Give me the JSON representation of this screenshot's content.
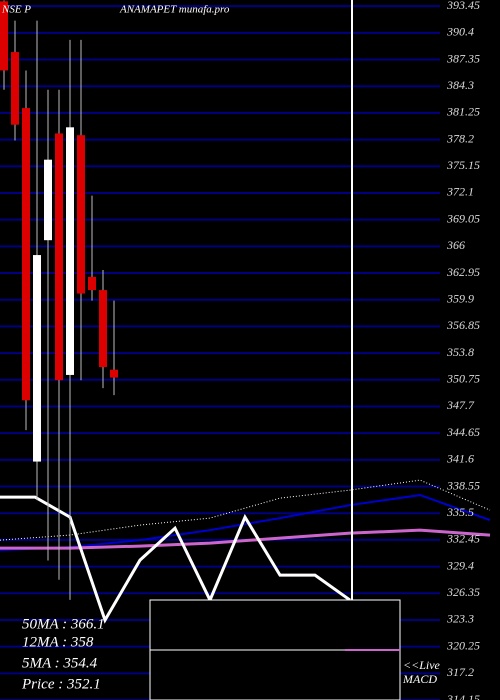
{
  "chart_data": {
    "type": "candlestick",
    "source": "NSE P",
    "title": "ANAMAPET munafa.pro",
    "categories": [
      null,
      null,
      null,
      null,
      null,
      null,
      null,
      null,
      null,
      null,
      null
    ],
    "open": [
      394.0,
      388.2,
      381.8,
      341.4,
      366.7,
      378.9,
      351.3,
      378.7,
      362.5,
      361.0,
      351.9
    ],
    "high": [
      394.1,
      391.8,
      386.1,
      391.8,
      383.9,
      383.9,
      389.6,
      389.6,
      371.8,
      363.3,
      359.8
    ],
    "low": [
      383.9,
      378.1,
      345.0,
      337.0,
      330.1,
      327.9,
      325.6,
      350.7,
      359.8,
      349.8,
      349.0
    ],
    "close": [
      386.1,
      379.9,
      348.4,
      365.0,
      375.9,
      350.7,
      379.6,
      360.6,
      361.0,
      352.2,
      351.0
    ],
    "up_color": "#ffffff",
    "down_color": "#dd0000",
    "lines": [
      {
        "color": "#0000cc",
        "style": "solid",
        "width": 2,
        "values": [
          331.28,
          331.62,
          332.42,
          333.56,
          334.94,
          336.42,
          337.57,
          334.71
        ]
      },
      {
        "color": "#cc66cc",
        "style": "solid",
        "width": 3,
        "values": [
          331.51,
          331.51,
          331.74,
          332.08,
          332.65,
          333.22,
          333.56,
          332.99
        ]
      },
      {
        "color": "#ffffff",
        "style": "dotted",
        "width": 1,
        "values": [
          332.42,
          333.0,
          334.14,
          334.94,
          337.22,
          338.14,
          339.28,
          335.85
        ]
      },
      {
        "color": "#ffffff",
        "style": "solid",
        "width": 3,
        "values": [
          337.34,
          337.34,
          335.05,
          323.28,
          330.14,
          333.79,
          325.57,
          335.05,
          328.42,
          328.42,
          325.57
        ]
      }
    ],
    "ylim": [
      314.15,
      394.15
    ],
    "yticks": [
      393.45,
      390.4,
      387.35,
      384.3,
      381.25,
      378.2,
      375.15,
      372.1,
      369.05,
      366,
      362.95,
      359.9,
      356.85,
      353.8,
      350.75,
      347.7,
      344.65,
      341.6,
      338.55,
      335.5,
      332.45,
      329.4,
      326.35,
      323.3,
      320.25,
      317.2,
      314.15
    ],
    "grid": true,
    "grid_color": "#000080",
    "stats": [
      "50MA : 366.1",
      "12MA : 358",
      "5MA : 354.4",
      "Price  : 352.1"
    ],
    "macd_label": [
      "<<Live",
      "MACD"
    ]
  }
}
